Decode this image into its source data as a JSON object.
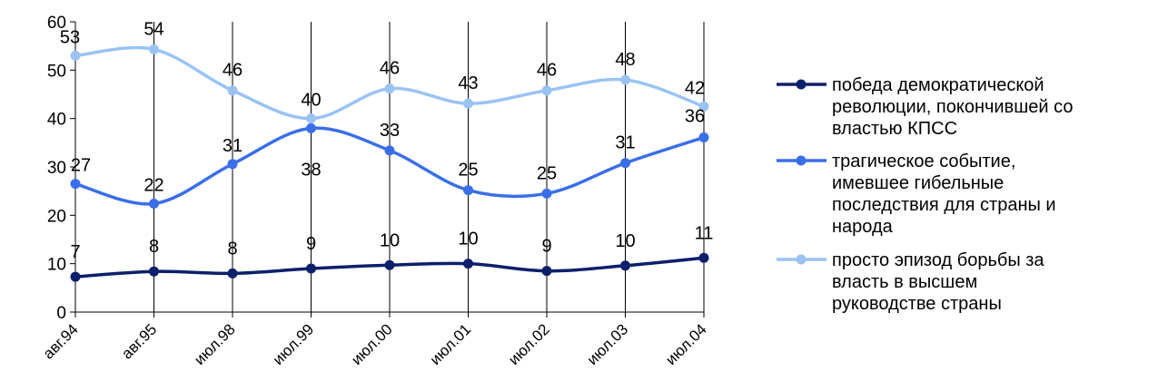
{
  "chart_data": {
    "type": "line",
    "categories": [
      "авг.94",
      "авг.95",
      "июл.98",
      "июл.99",
      "июл.00",
      "июл.01",
      "июл.02",
      "июл.03",
      "июл.04"
    ],
    "ylim": [
      0,
      60
    ],
    "yticks": [
      0,
      10,
      20,
      30,
      40,
      50,
      60
    ],
    "grid": "vertical",
    "legend_position": "right",
    "smooth": true,
    "series": [
      {
        "name": "победа демократической революции, покончившей со властью КПСС",
        "legend_lines": [
          "победа демократической",
          "революции, покончившей со",
          "властью КПСС"
        ],
        "color": "#0b1f6b",
        "values": [
          7.3,
          8.4,
          8.0,
          9.0,
          9.7,
          10.0,
          8.5,
          9.6,
          11.2
        ],
        "labels": [
          "7",
          "8",
          "8",
          "9",
          "10",
          "10",
          "9",
          "10",
          "11"
        ]
      },
      {
        "name": "трагическое событие, имевшее гибельные последствия для страны и народа",
        "legend_lines": [
          "трагическое событие,",
          "имевшее гибельные",
          "последствия для страны и",
          "народа"
        ],
        "color": "#3a6ee8",
        "values": [
          26.5,
          22.4,
          30.6,
          38.0,
          33.4,
          25.2,
          24.5,
          30.8,
          36.1
        ],
        "labels": [
          "27",
          "22",
          "31",
          "38",
          "33",
          "25",
          "25",
          "31",
          "36"
        ]
      },
      {
        "name": "просто эпизод борьбы за власть в высшем руководстве страны",
        "legend_lines": [
          "просто эпизод борьбы за",
          "власть в высшем",
          "руководстве страны"
        ],
        "color": "#9ac3f3",
        "values": [
          53.0,
          54.3,
          45.8,
          40.0,
          46.2,
          43.1,
          45.8,
          48.0,
          42.5
        ],
        "labels": [
          "53",
          "54",
          "46",
          "40",
          "46",
          "43",
          "46",
          "48",
          "42"
        ]
      }
    ]
  }
}
